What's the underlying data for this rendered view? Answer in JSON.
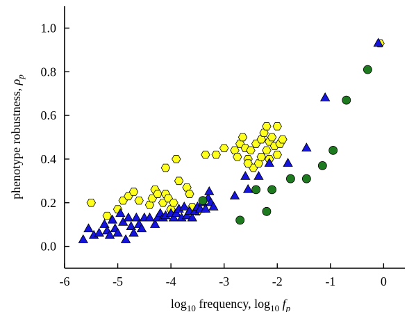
{
  "chart_data": {
    "type": "scatter",
    "xlabel": {
      "main": "log",
      "sub1": "10",
      "rest": " frequency, log",
      "sub2": "10",
      "var": " f",
      "varsub": "p"
    },
    "ylabel": {
      "main": "phenotype robustness, ",
      "var": "ρ",
      "varsub": "p"
    },
    "xlim": [
      -6,
      0.4
    ],
    "ylim": [
      -0.1,
      1.1
    ],
    "xticks": [
      -6,
      -5,
      -4,
      -3,
      -2,
      -1,
      0
    ],
    "xtick_labels": [
      "-6",
      "-5",
      "-4",
      "-3",
      "-2",
      "-1",
      "0"
    ],
    "yticks": [
      0.0,
      0.2,
      0.4,
      0.6,
      0.8,
      1.0
    ],
    "ytick_labels": [
      "0.0",
      "0.2",
      "0.4",
      "0.6",
      "0.8",
      "1.0"
    ],
    "grid": false,
    "colors": {
      "hexagon_fill": "#ffff1e",
      "triangle_fill": "#1414dc",
      "circle_fill": "#1e7a1e",
      "marker_edge": "#000000"
    },
    "series": [
      {
        "marker": "hexagon",
        "points": [
          [
            -5.5,
            0.2
          ],
          [
            -5.2,
            0.14
          ],
          [
            -5.0,
            0.17
          ],
          [
            -4.9,
            0.21
          ],
          [
            -4.8,
            0.23
          ],
          [
            -4.7,
            0.25
          ],
          [
            -4.6,
            0.21
          ],
          [
            -4.4,
            0.19
          ],
          [
            -4.35,
            0.22
          ],
          [
            -4.3,
            0.26
          ],
          [
            -4.25,
            0.24
          ],
          [
            -4.15,
            0.2
          ],
          [
            -4.1,
            0.24
          ],
          [
            -4.05,
            0.22
          ],
          [
            -4.0,
            0.17
          ],
          [
            -3.95,
            0.2
          ],
          [
            -4.1,
            0.36
          ],
          [
            -3.9,
            0.4
          ],
          [
            -3.85,
            0.3
          ],
          [
            -3.7,
            0.27
          ],
          [
            -3.6,
            0.18
          ],
          [
            -3.65,
            0.24
          ],
          [
            -3.5,
            0.16
          ],
          [
            -3.35,
            0.42
          ],
          [
            -3.15,
            0.42
          ],
          [
            -3.0,
            0.45
          ],
          [
            -2.8,
            0.44
          ],
          [
            -2.75,
            0.41
          ],
          [
            -2.7,
            0.47
          ],
          [
            -2.65,
            0.5
          ],
          [
            -2.6,
            0.45
          ],
          [
            -2.55,
            0.4
          ],
          [
            -2.5,
            0.44
          ],
          [
            -2.45,
            0.36
          ],
          [
            -2.4,
            0.47
          ],
          [
            -2.35,
            0.38
          ],
          [
            -2.3,
            0.49
          ],
          [
            -2.25,
            0.52
          ],
          [
            -2.2,
            0.44
          ],
          [
            -2.15,
            0.48
          ],
          [
            -2.1,
            0.5
          ],
          [
            -2.05,
            0.46
          ],
          [
            -2.0,
            0.42
          ],
          [
            -1.95,
            0.47
          ],
          [
            -1.9,
            0.49
          ],
          [
            -2.2,
            0.55
          ],
          [
            -2.0,
            0.55
          ],
          [
            -2.15,
            0.4
          ],
          [
            -2.55,
            0.38
          ],
          [
            -2.3,
            0.41
          ],
          [
            -0.07,
            0.93
          ]
        ]
      },
      {
        "marker": "triangle",
        "points": [
          [
            -5.65,
            0.03
          ],
          [
            -5.55,
            0.08
          ],
          [
            -5.45,
            0.05
          ],
          [
            -5.35,
            0.06
          ],
          [
            -5.25,
            0.1
          ],
          [
            -5.2,
            0.07
          ],
          [
            -5.15,
            0.05
          ],
          [
            -5.1,
            0.12
          ],
          [
            -5.05,
            0.08
          ],
          [
            -5.0,
            0.06
          ],
          [
            -4.95,
            0.15
          ],
          [
            -4.9,
            0.11
          ],
          [
            -4.85,
            0.03
          ],
          [
            -4.8,
            0.13
          ],
          [
            -4.75,
            0.09
          ],
          [
            -4.7,
            0.06
          ],
          [
            -4.65,
            0.13
          ],
          [
            -4.6,
            0.1
          ],
          [
            -4.55,
            0.08
          ],
          [
            -4.5,
            0.13
          ],
          [
            -4.4,
            0.13
          ],
          [
            -4.3,
            0.1
          ],
          [
            -4.25,
            0.13
          ],
          [
            -4.2,
            0.15
          ],
          [
            -4.15,
            0.13
          ],
          [
            -4.1,
            0.14
          ],
          [
            -4.0,
            0.15
          ],
          [
            -3.95,
            0.13
          ],
          [
            -3.9,
            0.15
          ],
          [
            -3.85,
            0.17
          ],
          [
            -3.8,
            0.13
          ],
          [
            -3.75,
            0.18
          ],
          [
            -3.7,
            0.14
          ],
          [
            -3.65,
            0.16
          ],
          [
            -3.6,
            0.13
          ],
          [
            -3.55,
            0.16
          ],
          [
            -3.5,
            0.18
          ],
          [
            -3.45,
            0.17
          ],
          [
            -3.4,
            0.2
          ],
          [
            -3.35,
            0.17
          ],
          [
            -3.3,
            0.22
          ],
          [
            -3.25,
            0.2
          ],
          [
            -3.2,
            0.18
          ],
          [
            -3.28,
            0.25
          ],
          [
            -2.8,
            0.23
          ],
          [
            -2.6,
            0.32
          ],
          [
            -2.55,
            0.26
          ],
          [
            -2.35,
            0.32
          ],
          [
            -2.15,
            0.38
          ],
          [
            -1.8,
            0.38
          ],
          [
            -1.45,
            0.45
          ],
          [
            -1.1,
            0.68
          ],
          [
            -0.1,
            0.93
          ]
        ]
      },
      {
        "marker": "circle",
        "points": [
          [
            -3.4,
            0.21
          ],
          [
            -2.7,
            0.12
          ],
          [
            -2.4,
            0.26
          ],
          [
            -2.2,
            0.16
          ],
          [
            -2.1,
            0.26
          ],
          [
            -1.75,
            0.31
          ],
          [
            -1.45,
            0.31
          ],
          [
            -1.15,
            0.37
          ],
          [
            -0.95,
            0.44
          ],
          [
            -0.7,
            0.67
          ],
          [
            -0.3,
            0.81
          ]
        ]
      }
    ]
  }
}
